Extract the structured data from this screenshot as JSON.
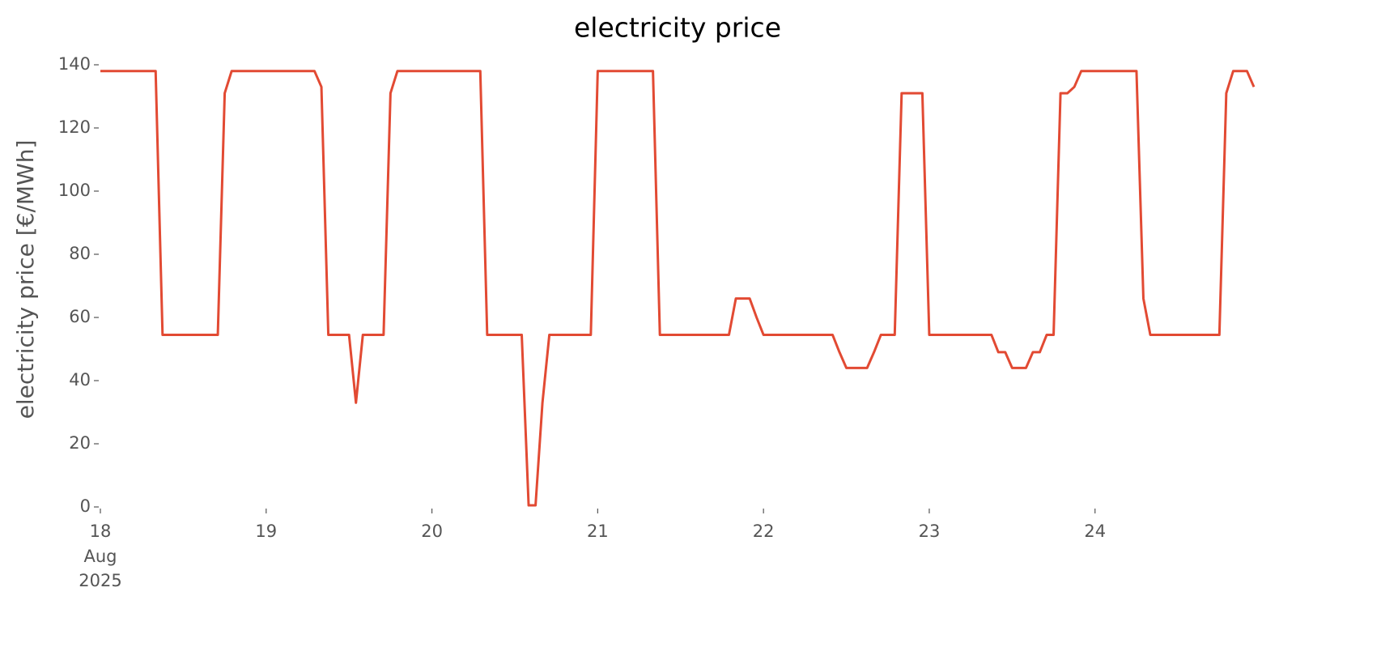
{
  "chart_data": {
    "type": "line",
    "title": "electricity price",
    "ylabel": "electricity price [€/MWh]",
    "ylim": [
      0,
      140
    ],
    "yticks": [
      0,
      20,
      40,
      60,
      80,
      100,
      120,
      140
    ],
    "xlim": [
      "2025-08-18 00:00",
      "2025-08-24 23:00"
    ],
    "xticks": [
      {
        "value": "2025-08-18 00:00",
        "label": "18",
        "sublabels": [
          "Aug",
          "2025"
        ]
      },
      {
        "value": "2025-08-19 00:00",
        "label": "19"
      },
      {
        "value": "2025-08-20 00:00",
        "label": "20"
      },
      {
        "value": "2025-08-21 00:00",
        "label": "21"
      },
      {
        "value": "2025-08-22 00:00",
        "label": "22"
      },
      {
        "value": "2025-08-23 00:00",
        "label": "23"
      },
      {
        "value": "2025-08-24 00:00",
        "label": "24"
      }
    ],
    "grid": false,
    "x": [
      "2025-08-18 00:00",
      "2025-08-18 01:00",
      "2025-08-18 02:00",
      "2025-08-18 03:00",
      "2025-08-18 04:00",
      "2025-08-18 05:00",
      "2025-08-18 06:00",
      "2025-08-18 07:00",
      "2025-08-18 08:00",
      "2025-08-18 09:00",
      "2025-08-18 10:00",
      "2025-08-18 11:00",
      "2025-08-18 12:00",
      "2025-08-18 13:00",
      "2025-08-18 14:00",
      "2025-08-18 15:00",
      "2025-08-18 16:00",
      "2025-08-18 17:00",
      "2025-08-18 18:00",
      "2025-08-18 19:00",
      "2025-08-18 20:00",
      "2025-08-18 21:00",
      "2025-08-18 22:00",
      "2025-08-18 23:00",
      "2025-08-19 00:00",
      "2025-08-19 01:00",
      "2025-08-19 02:00",
      "2025-08-19 03:00",
      "2025-08-19 04:00",
      "2025-08-19 05:00",
      "2025-08-19 06:00",
      "2025-08-19 07:00",
      "2025-08-19 08:00",
      "2025-08-19 09:00",
      "2025-08-19 10:00",
      "2025-08-19 11:00",
      "2025-08-19 12:00",
      "2025-08-19 13:00",
      "2025-08-19 14:00",
      "2025-08-19 15:00",
      "2025-08-19 16:00",
      "2025-08-19 17:00",
      "2025-08-19 18:00",
      "2025-08-19 19:00",
      "2025-08-19 20:00",
      "2025-08-19 21:00",
      "2025-08-19 22:00",
      "2025-08-19 23:00",
      "2025-08-20 00:00",
      "2025-08-20 01:00",
      "2025-08-20 02:00",
      "2025-08-20 03:00",
      "2025-08-20 04:00",
      "2025-08-20 05:00",
      "2025-08-20 06:00",
      "2025-08-20 07:00",
      "2025-08-20 08:00",
      "2025-08-20 09:00",
      "2025-08-20 10:00",
      "2025-08-20 11:00",
      "2025-08-20 12:00",
      "2025-08-20 13:00",
      "2025-08-20 14:00",
      "2025-08-20 15:00",
      "2025-08-20 16:00",
      "2025-08-20 17:00",
      "2025-08-20 18:00",
      "2025-08-20 19:00",
      "2025-08-20 20:00",
      "2025-08-20 21:00",
      "2025-08-20 22:00",
      "2025-08-20 23:00",
      "2025-08-21 00:00",
      "2025-08-21 01:00",
      "2025-08-21 02:00",
      "2025-08-21 03:00",
      "2025-08-21 04:00",
      "2025-08-21 05:00",
      "2025-08-21 06:00",
      "2025-08-21 07:00",
      "2025-08-21 08:00",
      "2025-08-21 09:00",
      "2025-08-21 10:00",
      "2025-08-21 11:00",
      "2025-08-21 12:00",
      "2025-08-21 13:00",
      "2025-08-21 14:00",
      "2025-08-21 15:00",
      "2025-08-21 16:00",
      "2025-08-21 17:00",
      "2025-08-21 18:00",
      "2025-08-21 19:00",
      "2025-08-21 20:00",
      "2025-08-21 21:00",
      "2025-08-21 22:00",
      "2025-08-21 23:00",
      "2025-08-22 00:00",
      "2025-08-22 01:00",
      "2025-08-22 02:00",
      "2025-08-22 03:00",
      "2025-08-22 04:00",
      "2025-08-22 05:00",
      "2025-08-22 06:00",
      "2025-08-22 07:00",
      "2025-08-22 08:00",
      "2025-08-22 09:00",
      "2025-08-22 10:00",
      "2025-08-22 11:00",
      "2025-08-22 12:00",
      "2025-08-22 13:00",
      "2025-08-22 14:00",
      "2025-08-22 15:00",
      "2025-08-22 16:00",
      "2025-08-22 17:00",
      "2025-08-22 18:00",
      "2025-08-22 19:00",
      "2025-08-22 20:00",
      "2025-08-22 21:00",
      "2025-08-22 22:00",
      "2025-08-22 23:00",
      "2025-08-23 00:00",
      "2025-08-23 01:00",
      "2025-08-23 02:00",
      "2025-08-23 03:00",
      "2025-08-23 04:00",
      "2025-08-23 05:00",
      "2025-08-23 06:00",
      "2025-08-23 07:00",
      "2025-08-23 08:00",
      "2025-08-23 09:00",
      "2025-08-23 10:00",
      "2025-08-23 11:00",
      "2025-08-23 12:00",
      "2025-08-23 13:00",
      "2025-08-23 14:00",
      "2025-08-23 15:00",
      "2025-08-23 16:00",
      "2025-08-23 17:00",
      "2025-08-23 18:00",
      "2025-08-23 19:00",
      "2025-08-23 20:00",
      "2025-08-23 21:00",
      "2025-08-23 22:00",
      "2025-08-23 23:00",
      "2025-08-24 00:00",
      "2025-08-24 01:00",
      "2025-08-24 02:00",
      "2025-08-24 03:00",
      "2025-08-24 04:00",
      "2025-08-24 05:00",
      "2025-08-24 06:00",
      "2025-08-24 07:00",
      "2025-08-24 08:00",
      "2025-08-24 09:00",
      "2025-08-24 10:00",
      "2025-08-24 11:00",
      "2025-08-24 12:00",
      "2025-08-24 13:00",
      "2025-08-24 14:00",
      "2025-08-24 15:00",
      "2025-08-24 16:00",
      "2025-08-24 17:00",
      "2025-08-24 18:00",
      "2025-08-24 19:00",
      "2025-08-24 20:00",
      "2025-08-24 21:00",
      "2025-08-24 22:00",
      "2025-08-24 23:00"
    ],
    "series": [
      {
        "name": "electricity price",
        "color": "#e24a33",
        "values": [
          138,
          138,
          138,
          138,
          138,
          138,
          138,
          138,
          138,
          54.5,
          54.5,
          54.5,
          54.5,
          54.5,
          54.5,
          54.5,
          54.5,
          54.5,
          131,
          138,
          138,
          138,
          138,
          138,
          138,
          138,
          138,
          138,
          138,
          138,
          138,
          138,
          133,
          54.5,
          54.5,
          54.5,
          54.5,
          33,
          54.5,
          54.5,
          54.5,
          54.5,
          131,
          138,
          138,
          138,
          138,
          138,
          138,
          138,
          138,
          138,
          138,
          138,
          138,
          138,
          54.5,
          54.5,
          54.5,
          54.5,
          54.5,
          54.5,
          0.5,
          0.5,
          33,
          54.5,
          54.5,
          54.5,
          54.5,
          54.5,
          54.5,
          54.5,
          138,
          138,
          138,
          138,
          138,
          138,
          138,
          138,
          138,
          54.5,
          54.5,
          54.5,
          54.5,
          54.5,
          54.5,
          54.5,
          54.5,
          54.5,
          54.5,
          54.5,
          66,
          66,
          66,
          60,
          54.5,
          54.5,
          54.5,
          54.5,
          54.5,
          54.5,
          54.5,
          54.5,
          54.5,
          54.5,
          54.5,
          49,
          44,
          44,
          44,
          44,
          49,
          54.5,
          54.5,
          54.5,
          131,
          131,
          131,
          131,
          54.5,
          54.5,
          54.5,
          54.5,
          54.5,
          54.5,
          54.5,
          54.5,
          54.5,
          54.5,
          49,
          49,
          44,
          44,
          44,
          49,
          49,
          54.5,
          54.5,
          131,
          131,
          133,
          138,
          138,
          138,
          138,
          138,
          138,
          138,
          138,
          138,
          66,
          54.5,
          54.5,
          54.5,
          54.5,
          54.5,
          54.5,
          54.5,
          54.5,
          54.5,
          54.5,
          54.5,
          131,
          138,
          138,
          138,
          133
        ]
      }
    ]
  }
}
